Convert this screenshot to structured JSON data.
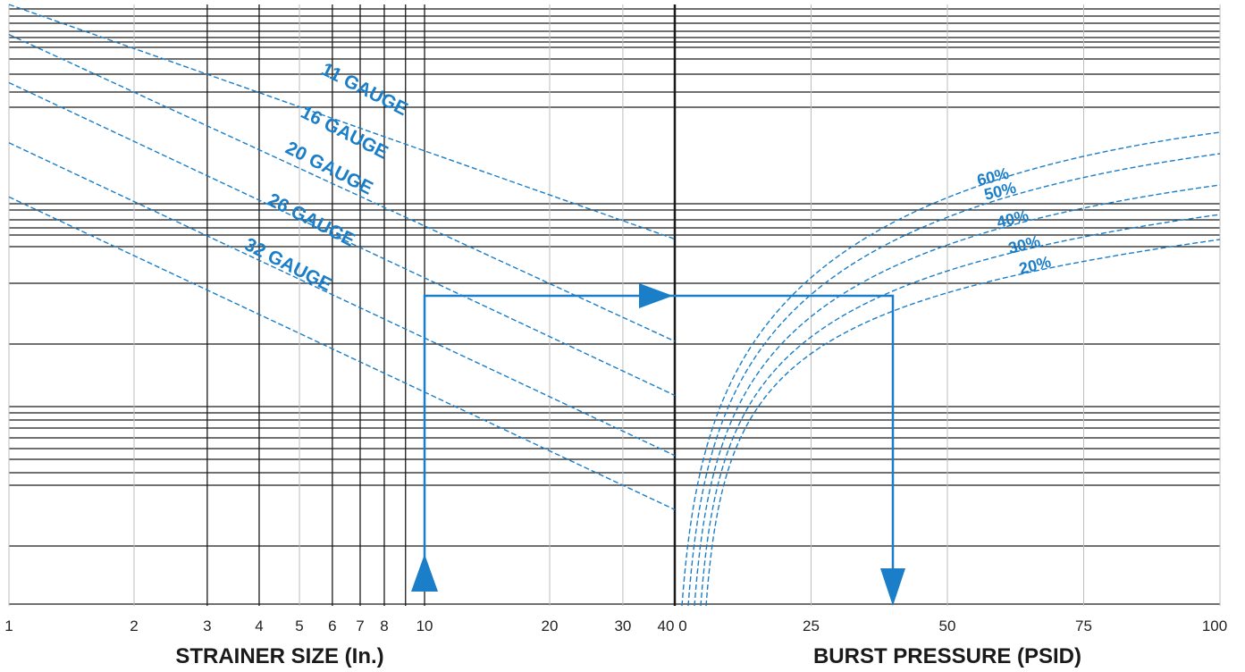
{
  "chart_data": [
    {
      "type": "line",
      "panel": "left",
      "x_scale": "log",
      "xlabel": "STRAINER SIZE (In.)",
      "xlim": [
        1,
        40
      ],
      "x_ticks": [
        "1",
        "2",
        "3",
        "4",
        "5",
        "6",
        "7",
        "8",
        "10",
        "20",
        "30",
        "40"
      ],
      "series": [
        {
          "name": "11 GAUGE",
          "x": [
            1,
            40
          ],
          "y": [
            1.0,
            0.61
          ]
        },
        {
          "name": "16 GAUGE",
          "x": [
            1,
            40
          ],
          "y": [
            0.95,
            0.44
          ]
        },
        {
          "name": "20 GAUGE",
          "x": [
            1,
            40
          ],
          "y": [
            0.87,
            0.35
          ]
        },
        {
          "name": "26 GAUGE",
          "x": [
            1,
            40
          ],
          "y": [
            0.77,
            0.25
          ]
        },
        {
          "name": "32 GAUGE",
          "x": [
            1,
            40
          ],
          "y": [
            0.68,
            0.16
          ]
        }
      ],
      "example": {
        "strainer_size": 10,
        "gauge": "20 GAUGE"
      }
    },
    {
      "type": "line",
      "panel": "right",
      "xlabel": "BURST PRESSURE (PSID)",
      "xlim": [
        0,
        100
      ],
      "x_ticks": [
        "0",
        "25",
        "50",
        "75",
        "100"
      ],
      "series": [
        {
          "name": "60%"
        },
        {
          "name": "50%"
        },
        {
          "name": "40%"
        },
        {
          "name": "30%"
        },
        {
          "name": "20%"
        }
      ],
      "example": {
        "open_area": "20%",
        "burst_pressure": 40
      }
    }
  ],
  "colors": {
    "curve": "#1a7ec8",
    "grid_major": "#1a1a1a",
    "grid_minor": "#bdbdbd"
  }
}
